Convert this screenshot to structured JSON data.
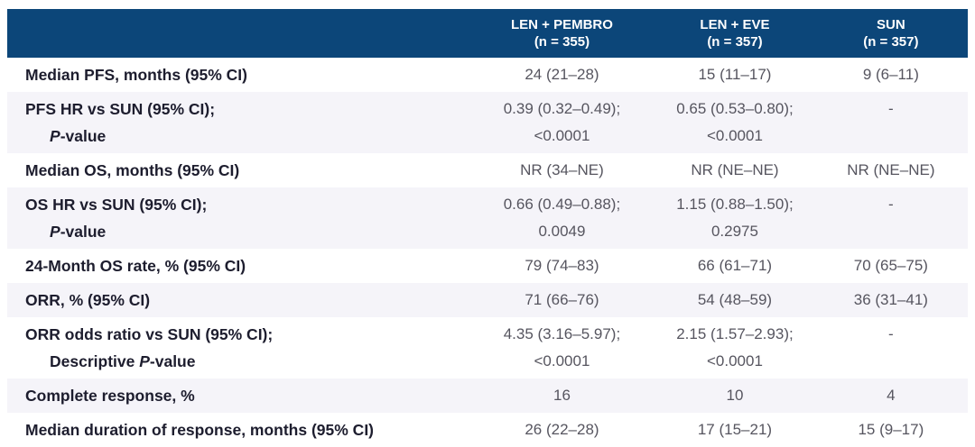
{
  "colors": {
    "header_bg": "#0C4679",
    "stripe_bg": "#F5F4F9",
    "label_text": "#1D1D2E",
    "value_text": "#56555F",
    "header_text": "#FFFFFF"
  },
  "table": {
    "header": {
      "columns": [
        {
          "line1": "LEN + PEMBRO",
          "line2": "(n = 355)"
        },
        {
          "line1": "LEN + EVE",
          "line2": "(n = 357)"
        },
        {
          "line1": "SUN",
          "line2": "(n = 357)"
        }
      ]
    },
    "rows": [
      {
        "label_lines": [
          {
            "indent": false,
            "parts": [
              {
                "text": "Median PFS, months (95% CI)",
                "italic": false
              }
            ]
          }
        ],
        "cells": [
          [
            "24 (21–28)"
          ],
          [
            "15 (11–17)"
          ],
          [
            "9 (6–11)"
          ]
        ]
      },
      {
        "label_lines": [
          {
            "indent": false,
            "parts": [
              {
                "text": "PFS HR vs SUN (95% CI);",
                "italic": false
              }
            ]
          },
          {
            "indent": true,
            "parts": [
              {
                "text": "P",
                "italic": true
              },
              {
                "text": "-value",
                "italic": false
              }
            ]
          }
        ],
        "cells": [
          [
            "0.39 (0.32–0.49);",
            "<0.0001"
          ],
          [
            "0.65 (0.53–0.80);",
            "<0.0001"
          ],
          [
            "-"
          ]
        ]
      },
      {
        "label_lines": [
          {
            "indent": false,
            "parts": [
              {
                "text": "Median OS, months (95% CI)",
                "italic": false
              }
            ]
          }
        ],
        "cells": [
          [
            "NR (34–NE)"
          ],
          [
            "NR (NE–NE)"
          ],
          [
            "NR (NE–NE)"
          ]
        ]
      },
      {
        "label_lines": [
          {
            "indent": false,
            "parts": [
              {
                "text": "OS HR vs SUN (95% CI);",
                "italic": false
              }
            ]
          },
          {
            "indent": true,
            "parts": [
              {
                "text": "P",
                "italic": true
              },
              {
                "text": "-value",
                "italic": false
              }
            ]
          }
        ],
        "cells": [
          [
            "0.66 (0.49–0.88);",
            "0.0049"
          ],
          [
            "1.15 (0.88–1.50);",
            "0.2975"
          ],
          [
            "-"
          ]
        ]
      },
      {
        "label_lines": [
          {
            "indent": false,
            "parts": [
              {
                "text": "24-Month OS rate, % (95% CI)",
                "italic": false
              }
            ]
          }
        ],
        "cells": [
          [
            "79 (74–83)"
          ],
          [
            "66 (61–71)"
          ],
          [
            "70 (65–75)"
          ]
        ]
      },
      {
        "label_lines": [
          {
            "indent": false,
            "parts": [
              {
                "text": "ORR, % (95% CI)",
                "italic": false
              }
            ]
          }
        ],
        "cells": [
          [
            "71 (66–76)"
          ],
          [
            "54 (48–59)"
          ],
          [
            "36 (31–41)"
          ]
        ]
      },
      {
        "label_lines": [
          {
            "indent": false,
            "parts": [
              {
                "text": "ORR odds ratio vs SUN (95% CI);",
                "italic": false
              }
            ]
          },
          {
            "indent": true,
            "parts": [
              {
                "text": "Descriptive ",
                "italic": false
              },
              {
                "text": "P",
                "italic": true
              },
              {
                "text": "-value",
                "italic": false
              }
            ]
          }
        ],
        "cells": [
          [
            "4.35 (3.16–5.97);",
            "<0.0001"
          ],
          [
            "2.15 (1.57–2.93);",
            "<0.0001"
          ],
          [
            "-"
          ]
        ]
      },
      {
        "label_lines": [
          {
            "indent": false,
            "parts": [
              {
                "text": "Complete response, %",
                "italic": false
              }
            ]
          }
        ],
        "cells": [
          [
            "16"
          ],
          [
            "10"
          ],
          [
            "4"
          ]
        ]
      },
      {
        "label_lines": [
          {
            "indent": false,
            "parts": [
              {
                "text": "Median duration of response, months (95% CI)",
                "italic": false
              }
            ]
          }
        ],
        "cells": [
          [
            "26 (22–28)"
          ],
          [
            "17 (15–21)"
          ],
          [
            "15 (9–17)"
          ]
        ]
      }
    ]
  },
  "chart_data": {
    "type": "table",
    "title": "",
    "columns": [
      "",
      "LEN + PEMBRO (n = 355)",
      "LEN + EVE (n = 357)",
      "SUN (n = 357)"
    ],
    "rows": [
      [
        "Median PFS, months (95% CI)",
        "24 (21–28)",
        "15 (11–17)",
        "9 (6–11)"
      ],
      [
        "PFS HR vs SUN (95% CI); P-value",
        "0.39 (0.32–0.49); <0.0001",
        "0.65 (0.53–0.80); <0.0001",
        "-"
      ],
      [
        "Median OS, months (95% CI)",
        "NR (34–NE)",
        "NR (NE–NE)",
        "NR (NE–NE)"
      ],
      [
        "OS HR vs SUN (95% CI); P-value",
        "0.66 (0.49–0.88); 0.0049",
        "1.15 (0.88–1.50); 0.2975",
        "-"
      ],
      [
        "24-Month OS rate, % (95% CI)",
        "79 (74–83)",
        "66 (61–71)",
        "70 (65–75)"
      ],
      [
        "ORR, % (95% CI)",
        "71 (66–76)",
        "54 (48–59)",
        "36 (31–41)"
      ],
      [
        "ORR odds ratio vs SUN (95% CI); Descriptive P-value",
        "4.35 (3.16–5.97); <0.0001",
        "2.15 (1.57–2.93); <0.0001",
        "-"
      ],
      [
        "Complete response, %",
        "16",
        "10",
        "4"
      ],
      [
        "Median duration of response, months (95% CI)",
        "26 (22–28)",
        "17 (15–21)",
        "15 (9–17)"
      ]
    ],
    "layout": {
      "striped_rows": true,
      "header_fill": "#0C4679",
      "value_alignment": "center"
    }
  }
}
